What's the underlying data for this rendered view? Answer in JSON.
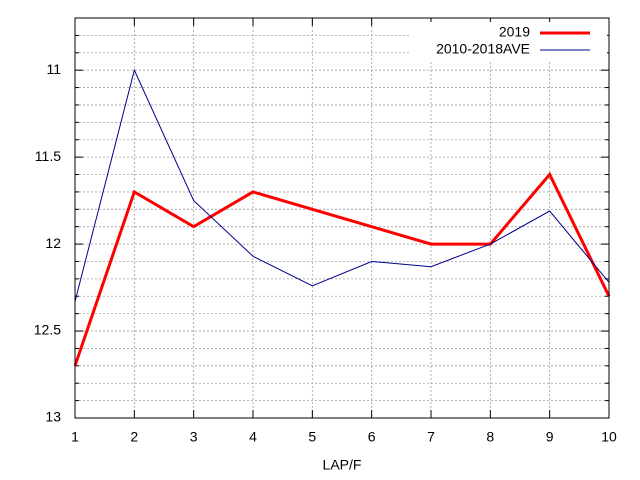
{
  "chart_data": {
    "type": "line",
    "x_label": "LAP/F",
    "x": [
      1,
      2,
      3,
      4,
      5,
      6,
      7,
      8,
      9,
      10
    ],
    "series": [
      {
        "name": "2019",
        "color": "#ff0000",
        "values": [
          12.7,
          11.7,
          11.9,
          11.7,
          11.8,
          11.9,
          12.0,
          12.0,
          11.6,
          12.3
        ]
      },
      {
        "name": "2010-2018AVE",
        "color": "#00008b",
        "values": [
          12.33,
          11.0,
          11.75,
          12.07,
          12.24,
          12.1,
          12.13,
          12.0,
          11.81,
          12.22
        ]
      }
    ],
    "xlim": [
      1,
      10
    ],
    "xticks": [
      1,
      2,
      3,
      4,
      5,
      6,
      7,
      8,
      9,
      10
    ],
    "ylim": [
      10.7,
      13
    ],
    "yticks": [
      11,
      11.5,
      12,
      12.5,
      13
    ],
    "y_reversed": true,
    "grid": true,
    "minor_subdivisions": 5,
    "legend": "top-right"
  }
}
